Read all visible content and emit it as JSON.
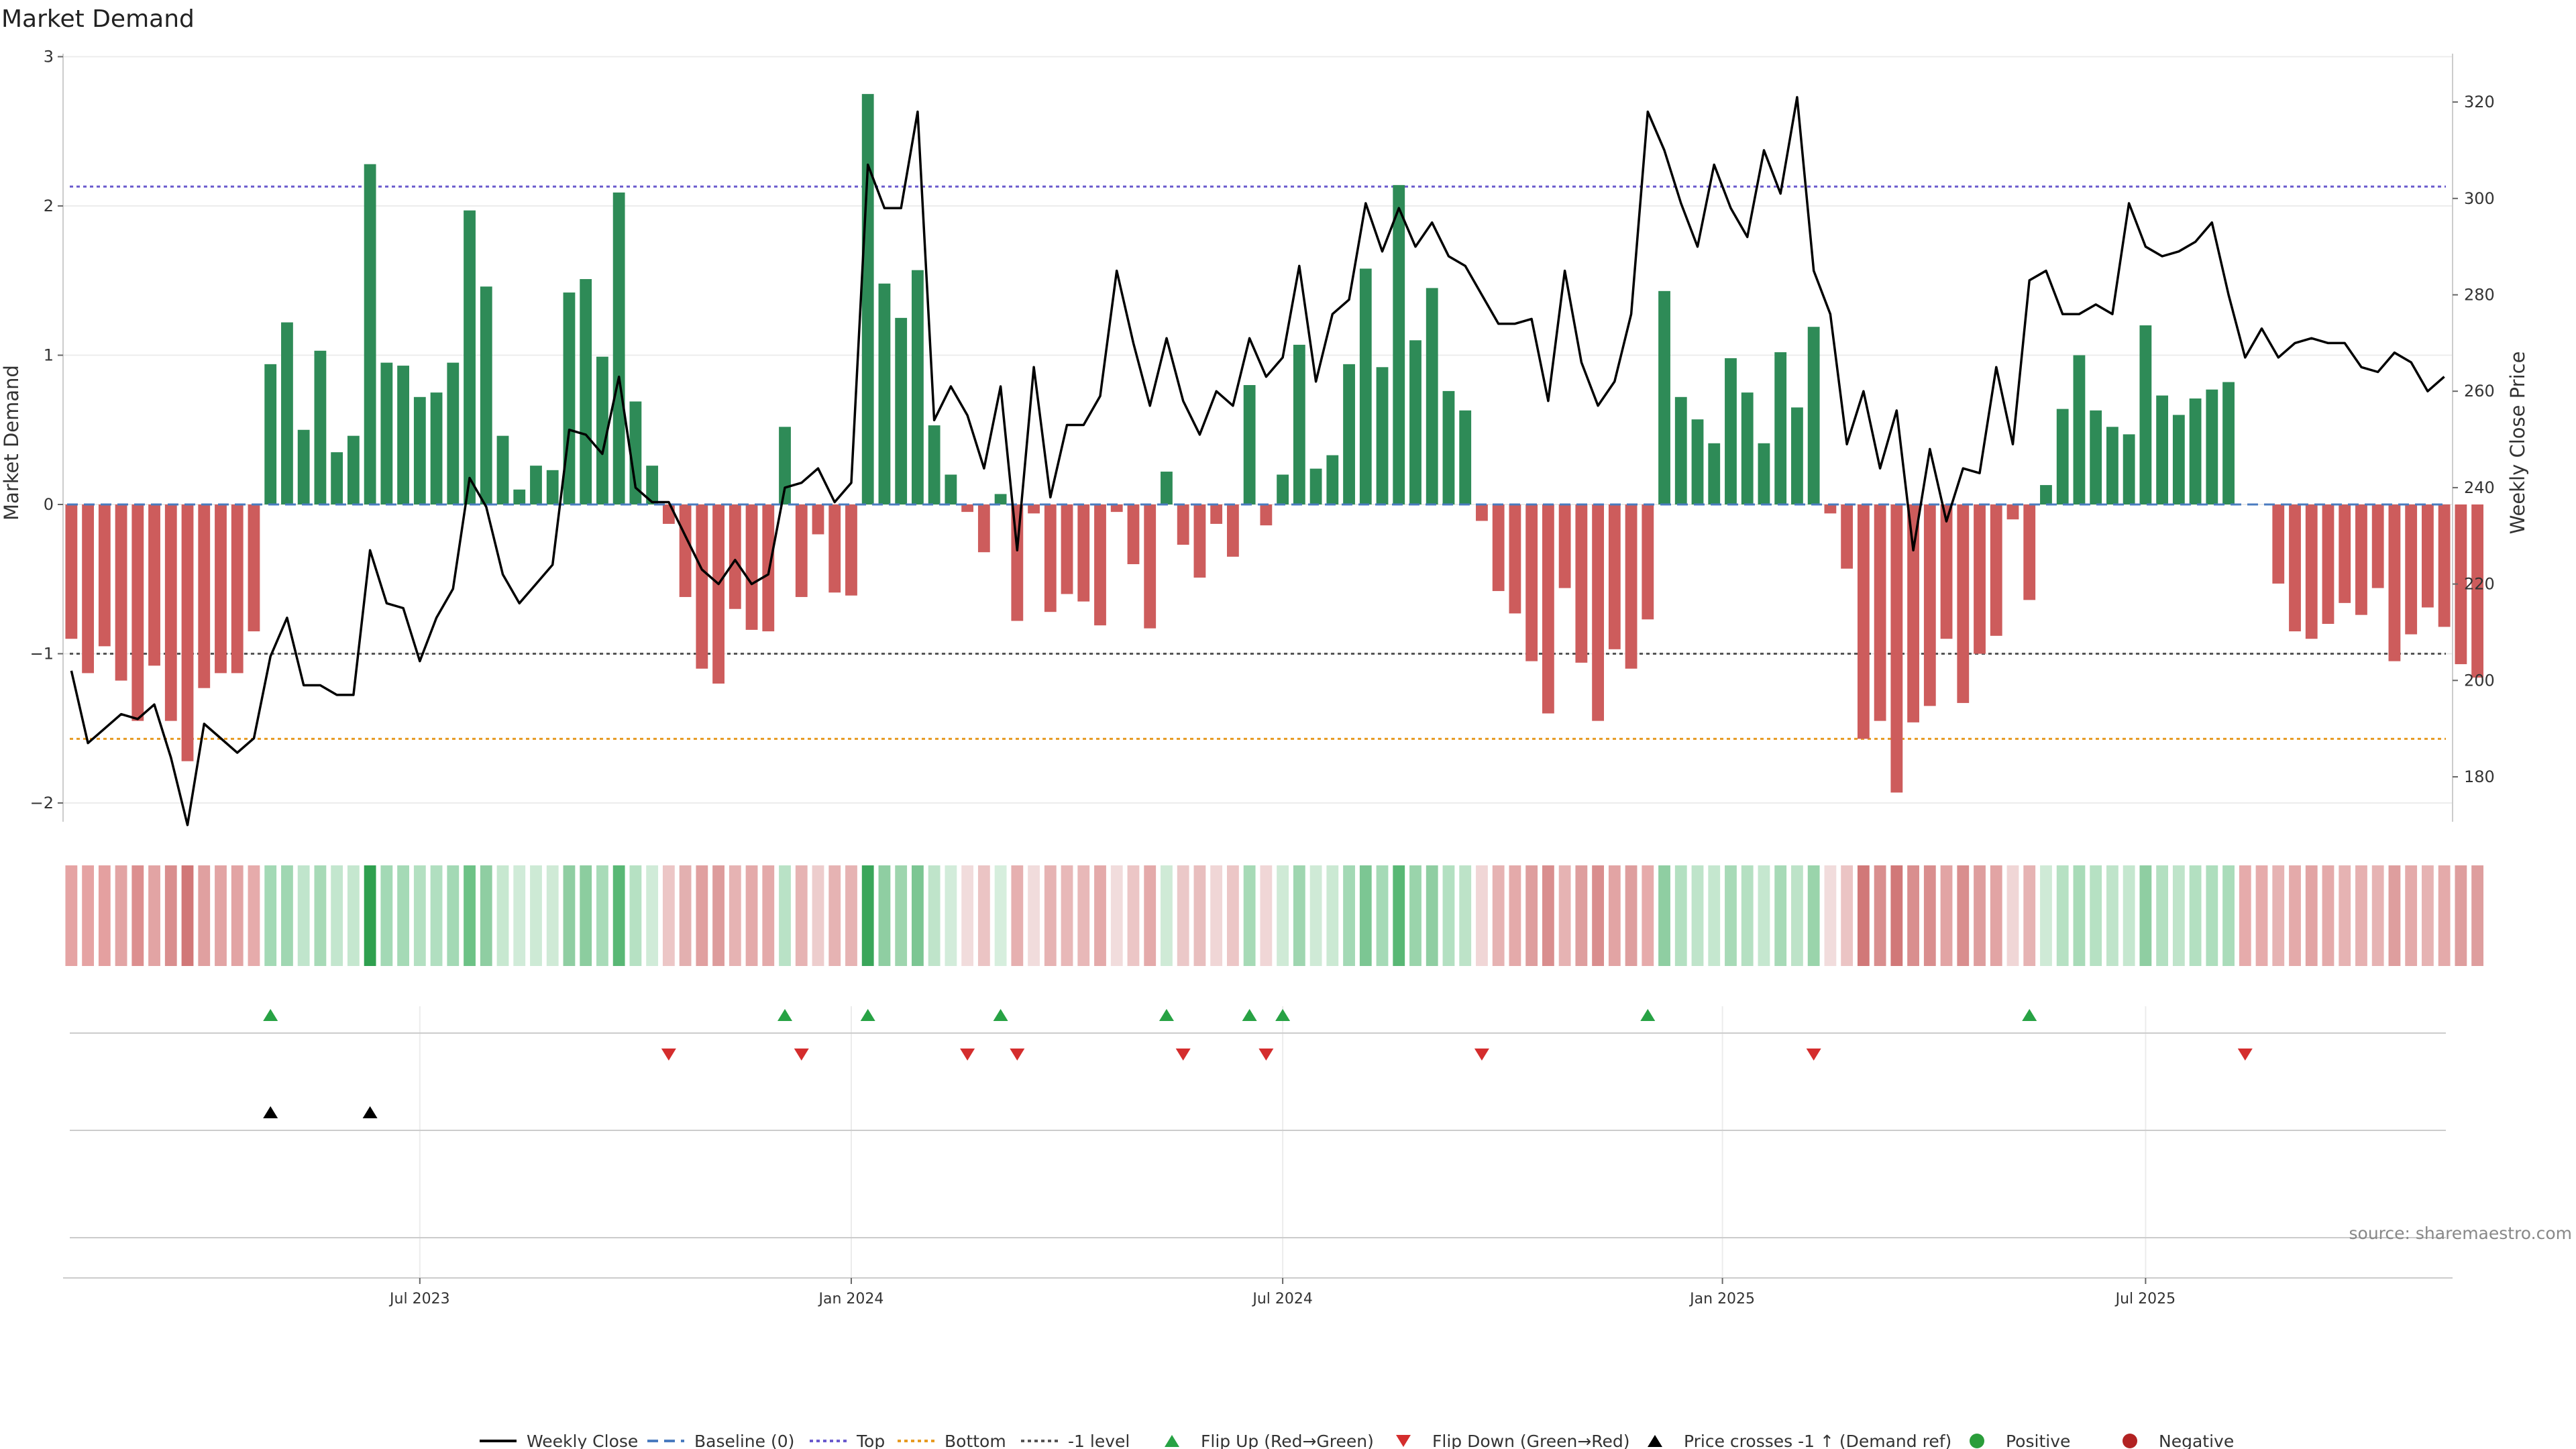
{
  "title": "Market Demand",
  "source": "source: sharemaestro.com",
  "chart_data": {
    "type": "bar",
    "title": "Market Demand",
    "ylabel_left": "Market Demand",
    "ylabel_right": "Weekly Close Price",
    "ylim_left": [
      -2.1,
      3.0
    ],
    "ylim_right": [
      172,
      323
    ],
    "left_ticks": [
      3,
      2,
      1,
      0,
      -1,
      -2
    ],
    "left_tick_labels": [
      "3",
      "2",
      "1",
      "0",
      "−1",
      "−2"
    ],
    "right_ticks": [
      320,
      300,
      280,
      260,
      240,
      220,
      200,
      180
    ],
    "right_tick_labels": [
      "320",
      "300",
      "280",
      "260",
      "240",
      "220",
      "200",
      "180"
    ],
    "date_ticks": [
      {
        "label": "Jul 2023",
        "week": 21
      },
      {
        "label": "Jan 2024",
        "week": 47
      },
      {
        "label": "Jul 2024",
        "week": 73
      },
      {
        "label": "Jan 2025",
        "week": 99.5
      },
      {
        "label": "Jul 2025",
        "week": 125
      }
    ],
    "n_weeks": 144,
    "reference_lines": {
      "top": 2.13,
      "bottom": -1.57,
      "minus_one": -1.0,
      "baseline": 0
    },
    "demand": [
      -0.9,
      -1.13,
      -0.95,
      -1.18,
      -1.45,
      -1.08,
      -1.45,
      -1.72,
      -1.23,
      -1.13,
      -1.13,
      -0.85,
      0.94,
      1.22,
      0.5,
      1.03,
      0.35,
      0.46,
      2.28,
      0.95,
      0.93,
      0.72,
      0.75,
      0.95,
      1.97,
      1.46,
      0.46,
      0.1,
      0.26,
      0.23,
      1.42,
      1.51,
      0.99,
      2.09,
      0.69,
      0.26,
      -0.13,
      -0.62,
      -1.1,
      -1.2,
      -0.7,
      -0.84,
      -0.85,
      0.52,
      -0.62,
      -0.2,
      -0.59,
      -0.61,
      2.75,
      1.48,
      1.25,
      1.57,
      0.53,
      0.2,
      -0.05,
      -0.32,
      0.07,
      -0.78,
      -0.06,
      -0.72,
      -0.6,
      -0.65,
      -0.81,
      -0.05,
      -0.4,
      -0.83,
      0.22,
      -0.27,
      -0.49,
      -0.13,
      -0.35,
      0.8,
      -0.14,
      0.2,
      1.07,
      0.24,
      0.33,
      0.94,
      1.58,
      0.92,
      2.14,
      1.1,
      1.45,
      0.76,
      0.63,
      -0.11,
      -0.58,
      -0.73,
      -1.05,
      -1.4,
      -0.56,
      -1.06,
      -1.45,
      -0.97,
      -1.1,
      -0.77,
      1.43,
      0.72,
      0.57,
      0.41,
      0.98,
      0.75,
      0.41,
      1.02,
      0.65,
      1.19,
      -0.06,
      -0.43,
      -1.57,
      -1.45,
      -1.93,
      -1.46,
      -1.35,
      -0.9,
      -1.33,
      -1.0,
      -0.88,
      -0.1,
      -0.64,
      0.13,
      0.64,
      1.0,
      0.63,
      0.52,
      0.47,
      1.2,
      0.73,
      0.6,
      0.71,
      0.77,
      0.82,
      0.0,
      0.0,
      -0.53,
      -0.85,
      -0.9,
      -0.8,
      -0.66,
      -0.74,
      -0.56,
      -1.05,
      -0.87,
      -0.69,
      -0.82,
      -1.07,
      -1.16
    ],
    "price": [
      202,
      187,
      190,
      193,
      192,
      195,
      184,
      170,
      191,
      188,
      185,
      188,
      205,
      213,
      199,
      199,
      197,
      197,
      227,
      216,
      215,
      204,
      213,
      219,
      242,
      236,
      222,
      216,
      220,
      224,
      252,
      251,
      247,
      263,
      240,
      237,
      237,
      230,
      223,
      220,
      225,
      220,
      222,
      240,
      241,
      244,
      237,
      241,
      307,
      298,
      298,
      318,
      254,
      261,
      255,
      244,
      261,
      227,
      265,
      238,
      253,
      253,
      259,
      285,
      270,
      257,
      271,
      258,
      251,
      260,
      257,
      271,
      263,
      267,
      286,
      262,
      276,
      279,
      299,
      289,
      298,
      290,
      295,
      288,
      286,
      280,
      274,
      274,
      275,
      258,
      285,
      266,
      257,
      262,
      276,
      318,
      310,
      299,
      290,
      307,
      298,
      292,
      310,
      301,
      321,
      285,
      276,
      249,
      260,
      244,
      256,
      227,
      248,
      233,
      244,
      243,
      265,
      249,
      283,
      285,
      276,
      276,
      278,
      276,
      299,
      290,
      288,
      289,
      291,
      295,
      280,
      267,
      273,
      267,
      270,
      271,
      270,
      270,
      265,
      264,
      268,
      266,
      260,
      263
    ],
    "heat_colors": [
      "#e5a3a3",
      "#e5a3a3",
      "#e4a0a0",
      "#e2a4a4",
      "#dc8f8f",
      "#e2a4a4",
      "#d98e8e",
      "#d17878",
      "#e0a0a0",
      "#e2a4a4",
      "#e2a4a4",
      "#e6abab",
      "#a3d9b5",
      "#a0d7b2",
      "#c0e5cc",
      "#a7dab7",
      "#c3e6ce",
      "#c5e7cf",
      "#2fa04f",
      "#a3d9b5",
      "#a5dab6",
      "#b3e0c1",
      "#b1dfc0",
      "#a3d9b5",
      "#6dc286",
      "#8fcea2",
      "#c7e8d0",
      "#d0ebd8",
      "#cdeaD5",
      "#cfead6",
      "#8fcea2",
      "#8ccd9f",
      "#a8dbb8",
      "#59b875",
      "#b6e1c3",
      "#d0ebd8",
      "#ecc6c6",
      "#e3b0b0",
      "#e0a0a0",
      "#dd9c9c",
      "#e6b3b3",
      "#e4aaaa",
      "#e4aaaa",
      "#b9e2c6",
      "#e6b3b3",
      "#edcdcd",
      "#e6b3b3",
      "#e6b3b3",
      "#3aa65a",
      "#8fcea2",
      "#9ed5ae",
      "#7cc693",
      "#bfe4ca",
      "#d2ecda",
      "#f1dcdc",
      "#ebc4c4",
      "#d6eedd",
      "#e6b0b0",
      "#f1dcdc",
      "#e6b3b3",
      "#e8b8b8",
      "#e8b8b8",
      "#e4aaaa",
      "#f1dcdc",
      "#ecc6c6",
      "#e4aaaa",
      "#cfead6",
      "#ebc8c8",
      "#e8bebe",
      "#f0d6d6",
      "#ecc6c6",
      "#a6dab6",
      "#f0d6d6",
      "#cfead6",
      "#9fd6b0",
      "#cfead6",
      "#cbe9d3",
      "#a3d9b5",
      "#7cc693",
      "#a5dab6",
      "#59b875",
      "#9ad4ab",
      "#8fcea2",
      "#b3e0c1",
      "#bde3c8",
      "#f0d6d6",
      "#e6b3b3",
      "#e4aaaa",
      "#de9e9e",
      "#d98e8e",
      "#e6b3b3",
      "#de9e9e",
      "#d98e8e",
      "#e2a4a4",
      "#de9e9e",
      "#e6abab",
      "#8fcea2",
      "#b3e0c1",
      "#bfe4ca",
      "#c5e7cf",
      "#a7dab7",
      "#b5e0c2",
      "#c5e7cf",
      "#a7dab7",
      "#bde3c8",
      "#9ad4ab",
      "#f1dcdc",
      "#ebc4c4",
      "#d17878",
      "#d98e8e",
      "#d17878",
      "#d98e8e",
      "#d98e8e",
      "#e2a4a4",
      "#d98e8e",
      "#de9e9e",
      "#e2a4a4",
      "#f0d6d6",
      "#e6b3b3",
      "#cfead6",
      "#b6e1c3",
      "#a8dbb8",
      "#b6e1c3",
      "#bfe4ca",
      "#c5e7cf",
      "#8fcea2",
      "#b3e0c1",
      "#bfe4ca",
      "#b3e0c1",
      "#aedebd",
      "#aadcba",
      "#e6abab",
      "#e6abab",
      "#e6b3b3",
      "#e4aaaa",
      "#e2a4a4",
      "#e4aaaa",
      "#e6b3b3",
      "#e6b0b0",
      "#e6b3b3",
      "#de9e9e",
      "#e4aaaa",
      "#e6b3b3",
      "#e4aaaa",
      "#de9e9e",
      "#de9e9e"
    ],
    "flip_up_weeks": [
      12,
      43,
      48,
      56,
      66,
      71,
      73,
      95,
      118
    ],
    "flip_down_weeks": [
      36,
      44,
      54,
      57,
      67,
      72,
      85,
      105,
      131
    ],
    "price_cross_weeks": [
      12,
      18
    ],
    "colors": {
      "positive": "#2e8b57",
      "negative": "#cd5c5c",
      "price": "#000000",
      "top": "#6a5acd",
      "bottom": "#e69a22",
      "minus_one": "#555555",
      "baseline": "#4a7bbf",
      "flip_up": "#27a244",
      "flip_down": "#d42d2d",
      "cross": "#000000",
      "pos_dot": "#2a9d3a",
      "neg_dot": "#b22222"
    }
  },
  "legend": [
    {
      "label": "Weekly Close",
      "symbol": "line"
    },
    {
      "label": "Baseline (0)",
      "symbol": "dash"
    },
    {
      "label": "Top",
      "symbol": "dot-blue"
    },
    {
      "label": "Bottom",
      "symbol": "dot-orange"
    },
    {
      "label": "-1 level",
      "symbol": "dot-gray"
    },
    {
      "label": "Flip Up (Red→Green)",
      "symbol": "tri-up-green"
    },
    {
      "label": "Flip Down (Green→Red)",
      "symbol": "tri-down-red"
    },
    {
      "label": "Price crosses -1 ↑ (Demand ref)",
      "symbol": "tri-up-black"
    },
    {
      "label": "Positive",
      "symbol": "dot-green"
    },
    {
      "label": "Negative",
      "symbol": "dot-red"
    }
  ]
}
